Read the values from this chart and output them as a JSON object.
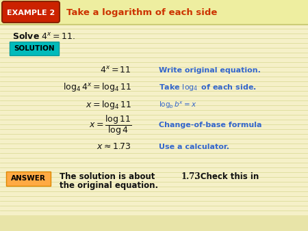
{
  "bg_color": "#f5f0c8",
  "header_bg": "#eeeea0",
  "line_color": "#d8d890",
  "title_text": "Take a logarithm of each side",
  "title_color": "#cc3300",
  "example_label": "EXAMPLE 2",
  "example_bg": "#cc2200",
  "example_border": "#882200",
  "example_text_color": "#ffffff",
  "solution_label": "SOLUTION",
  "solution_bg": "#00bbbb",
  "solution_border": "#009999",
  "answer_label": "ANSWER",
  "answer_bg": "#ffaa44",
  "answer_border": "#dd8800",
  "blue_color": "#3366cc",
  "black_color": "#111111",
  "header_sep_color": "#cccc77"
}
